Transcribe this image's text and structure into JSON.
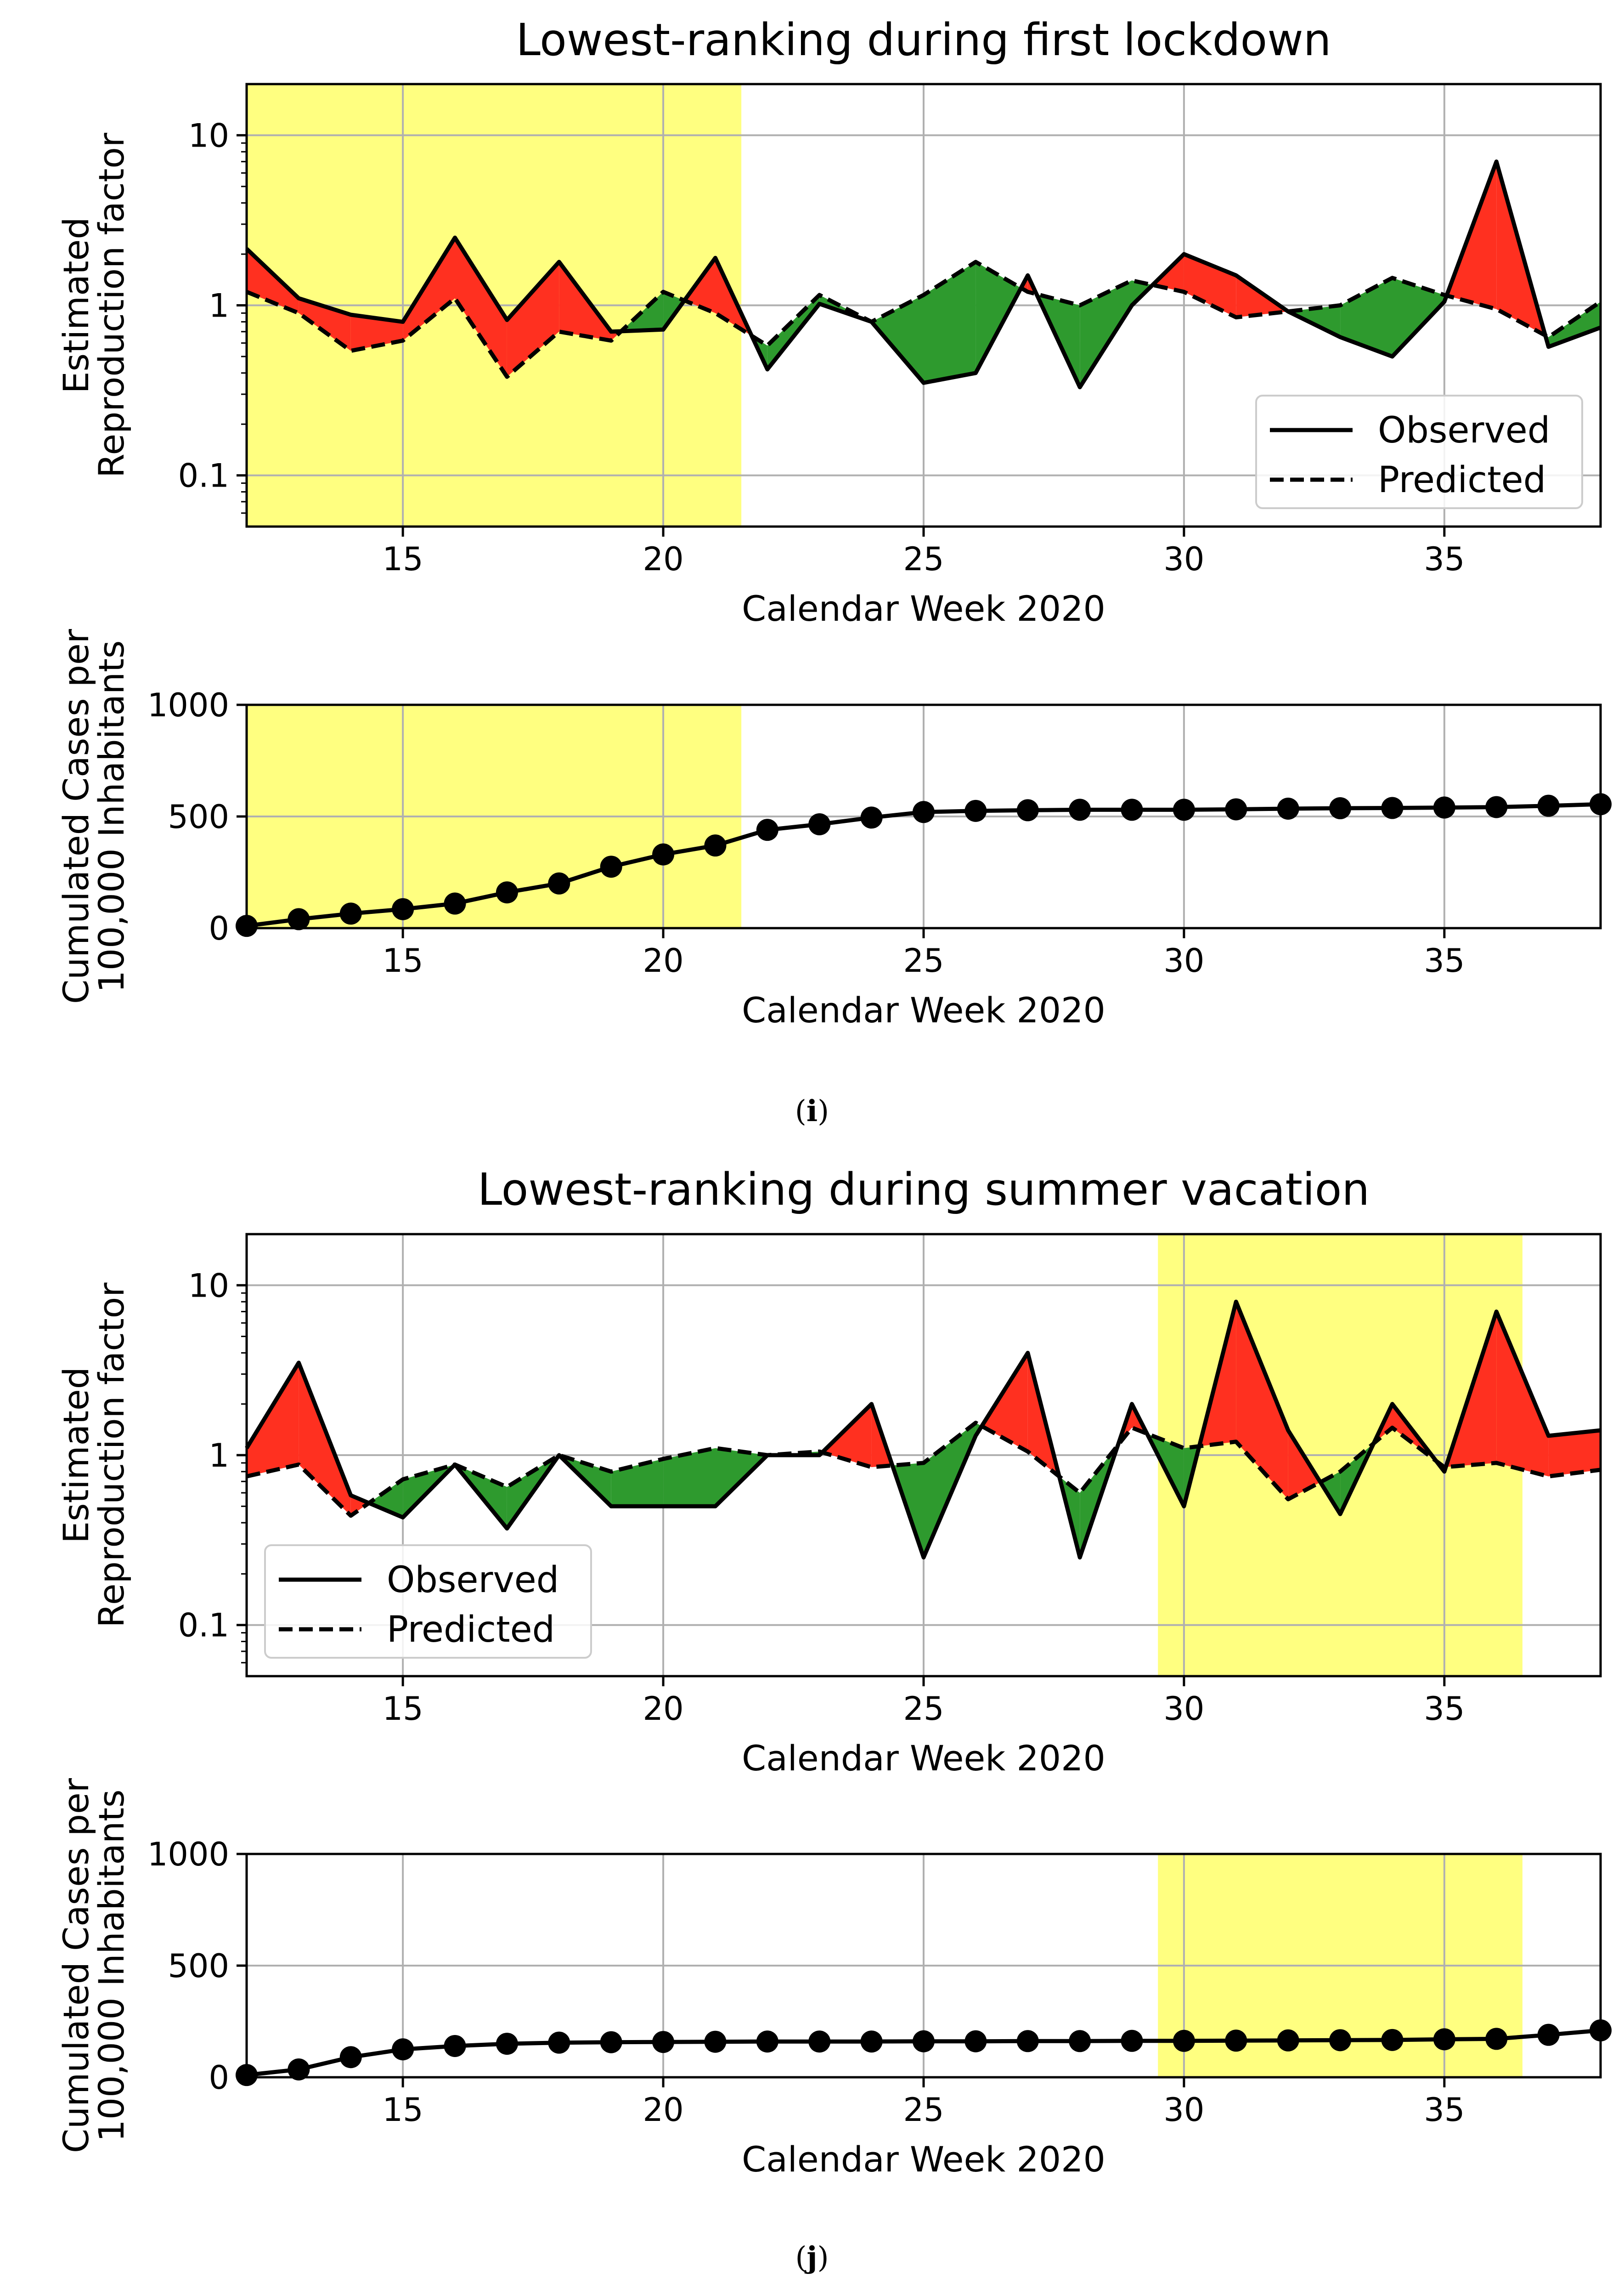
{
  "chart_data": [
    {
      "id": "i",
      "caption_open": "(",
      "caption_letter": "i",
      "caption_close": ")",
      "r_panel": {
        "type": "line",
        "title": "Lowest-ranking during first lockdown",
        "xlabel": "Calendar Week 2020",
        "ylabel_lines": [
          "Estimated",
          "Reproduction factor"
        ],
        "yscale": "log",
        "xlim": [
          12,
          38
        ],
        "ylim": [
          0.05,
          20
        ],
        "xticks": [
          15,
          20,
          25,
          30,
          35
        ],
        "yticks": [
          0.1,
          1,
          10
        ],
        "ytick_labels": [
          "0.1",
          "1",
          "10"
        ],
        "highlight": [
          12,
          21.5
        ],
        "legend_position": "lower-right",
        "x": [
          12,
          13,
          14,
          15,
          16,
          17,
          18,
          19,
          20,
          21,
          22,
          23,
          24,
          25,
          26,
          27,
          28,
          29,
          30,
          31,
          32,
          33,
          34,
          35,
          36,
          37,
          38
        ],
        "series": [
          {
            "name": "Observed",
            "style": "solid",
            "values": [
              2.15,
              1.1,
              0.88,
              0.8,
              2.5,
              0.82,
              1.8,
              0.7,
              0.72,
              1.9,
              0.42,
              1.02,
              0.8,
              0.35,
              0.4,
              1.5,
              0.33,
              1.0,
              2.0,
              1.5,
              0.92,
              0.65,
              0.5,
              1.05,
              7.0,
              0.57,
              0.74
            ]
          },
          {
            "name": "Predicted",
            "style": "dashed",
            "values": [
              1.2,
              0.9,
              0.54,
              0.62,
              1.1,
              0.38,
              0.7,
              0.62,
              1.2,
              0.9,
              0.58,
              1.15,
              0.8,
              1.15,
              1.8,
              1.2,
              1.0,
              1.4,
              1.2,
              0.85,
              0.92,
              1.0,
              1.45,
              1.15,
              0.95,
              0.65,
              1.05
            ]
          }
        ]
      },
      "c_panel": {
        "type": "line",
        "xlabel": "Calendar Week 2020",
        "ylabel_lines": [
          "Cumulated Cases per",
          "100,000 Inhabitants"
        ],
        "xlim": [
          12,
          38
        ],
        "ylim": [
          0,
          1000
        ],
        "xticks": [
          15,
          20,
          25,
          30,
          35
        ],
        "yticks": [
          0,
          500,
          1000
        ],
        "ytick_labels": [
          "0",
          "500",
          "1000"
        ],
        "highlight": [
          12,
          21.5
        ],
        "x": [
          12,
          13,
          14,
          15,
          16,
          17,
          18,
          19,
          20,
          21,
          22,
          23,
          24,
          25,
          26,
          27,
          28,
          29,
          30,
          31,
          32,
          33,
          34,
          35,
          36,
          37,
          38
        ],
        "values": [
          10,
          40,
          65,
          85,
          110,
          160,
          200,
          275,
          330,
          370,
          440,
          465,
          495,
          520,
          525,
          528,
          530,
          530,
          530,
          532,
          535,
          537,
          538,
          540,
          542,
          548,
          555
        ]
      }
    },
    {
      "id": "j",
      "caption_open": "(",
      "caption_letter": "j",
      "caption_close": ")",
      "r_panel": {
        "type": "line",
        "title": "Lowest-ranking during summer vacation",
        "xlabel": "Calendar Week 2020",
        "ylabel_lines": [
          "Estimated",
          "Reproduction factor"
        ],
        "yscale": "log",
        "xlim": [
          12,
          38
        ],
        "ylim": [
          0.05,
          20
        ],
        "xticks": [
          15,
          20,
          25,
          30,
          35
        ],
        "yticks": [
          0.1,
          1,
          10
        ],
        "ytick_labels": [
          "0.1",
          "1",
          "10"
        ],
        "highlight": [
          29.5,
          36.5
        ],
        "legend_position": "lower-left",
        "x": [
          12,
          13,
          14,
          15,
          16,
          17,
          18,
          19,
          20,
          21,
          22,
          23,
          24,
          25,
          26,
          27,
          28,
          29,
          30,
          31,
          32,
          33,
          34,
          35,
          36,
          37,
          38
        ],
        "series": [
          {
            "name": "Observed",
            "style": "solid",
            "values": [
              1.1,
              3.5,
              0.58,
              0.43,
              0.88,
              0.37,
              1.0,
              0.5,
              0.5,
              0.5,
              1.0,
              1.0,
              2.0,
              0.25,
              1.3,
              4.0,
              0.25,
              2.0,
              0.5,
              8.0,
              1.4,
              0.45,
              2.0,
              0.8,
              7.0,
              1.3,
              1.4
            ]
          },
          {
            "name": "Predicted",
            "style": "dashed",
            "values": [
              0.75,
              0.88,
              0.44,
              0.72,
              0.88,
              0.65,
              1.0,
              0.8,
              0.95,
              1.1,
              1.0,
              1.05,
              0.85,
              0.9,
              1.55,
              1.05,
              0.6,
              1.45,
              1.1,
              1.2,
              0.55,
              0.8,
              1.45,
              0.85,
              0.9,
              0.75,
              0.82
            ]
          }
        ]
      },
      "c_panel": {
        "type": "line",
        "xlabel": "Calendar Week 2020",
        "ylabel_lines": [
          "Cumulated Cases per",
          "100,000 Inhabitants"
        ],
        "xlim": [
          12,
          38
        ],
        "ylim": [
          0,
          1000
        ],
        "xticks": [
          15,
          20,
          25,
          30,
          35
        ],
        "yticks": [
          0,
          500,
          1000
        ],
        "ytick_labels": [
          "0",
          "500",
          "1000"
        ],
        "highlight": [
          29.5,
          36.5
        ],
        "x": [
          12,
          13,
          14,
          15,
          16,
          17,
          18,
          19,
          20,
          21,
          22,
          23,
          24,
          25,
          26,
          27,
          28,
          29,
          30,
          31,
          32,
          33,
          34,
          35,
          36,
          37,
          38
        ],
        "values": [
          10,
          35,
          90,
          125,
          140,
          150,
          155,
          157,
          158,
          159,
          160,
          160,
          160,
          161,
          161,
          162,
          162,
          163,
          163,
          164,
          165,
          166,
          167,
          170,
          172,
          190,
          210
        ]
      }
    }
  ],
  "colors": {
    "highlight": "#ffff80",
    "above": "#ff3020",
    "below": "#2e9a2e",
    "grid": "#b0b0b0",
    "line": "#000000"
  }
}
